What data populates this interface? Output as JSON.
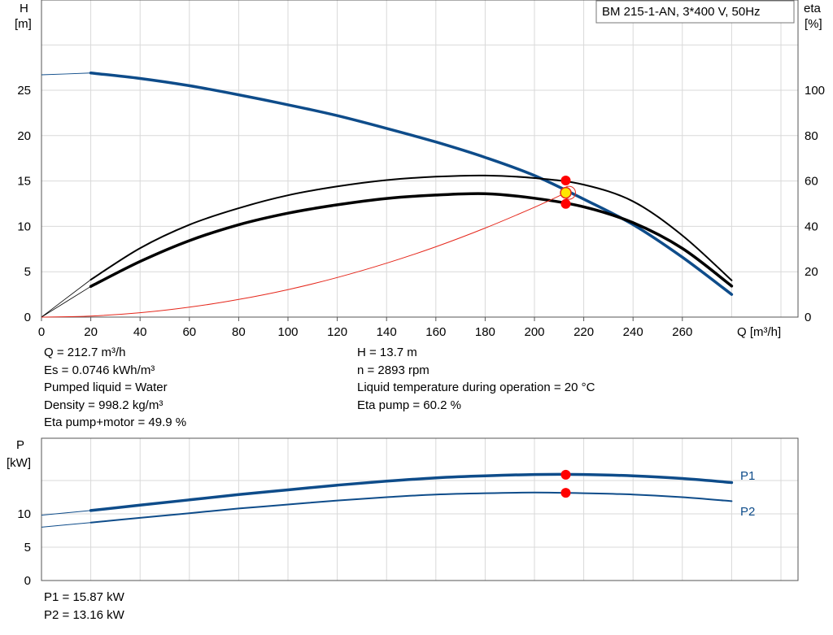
{
  "chart_data": [
    {
      "type": "line",
      "title": "BM 215-1-AN, 3*400 V, 50Hz",
      "ylabel": "H",
      "yunit": "[m]",
      "y2label": "eta",
      "y2unit": "[%]",
      "xlabel": "Q [m³/h]",
      "xlim": [
        0,
        300
      ],
      "ylim": [
        0,
        30
      ],
      "y2lim": [
        0,
        120
      ],
      "xticks": [
        "0",
        "20",
        "40",
        "60",
        "80",
        "100",
        "120",
        "140",
        "160",
        "180",
        "200",
        "220",
        "240",
        "260"
      ],
      "yticks": [
        "0",
        "5",
        "10",
        "15",
        "20",
        "25"
      ],
      "y2ticks": [
        "0",
        "20",
        "40",
        "60",
        "80",
        "100"
      ],
      "grid": true,
      "series": [
        {
          "id": "H-curve",
          "axis": "left",
          "color": "#0e4c8a",
          "x": [
            0,
            20,
            40,
            60,
            80,
            100,
            120,
            140,
            160,
            180,
            200,
            220,
            240,
            260,
            280
          ],
          "y": [
            26.7,
            26.9,
            26.3,
            25.5,
            24.5,
            23.4,
            22.2,
            20.8,
            19.3,
            17.6,
            15.6,
            13.0,
            10.2,
            6.6,
            2.5
          ]
        },
        {
          "id": "eta-pump",
          "axis": "right",
          "color": "#000000",
          "x": [
            0,
            20,
            40,
            60,
            80,
            100,
            120,
            140,
            160,
            180,
            200,
            220,
            240,
            260,
            280
          ],
          "y": [
            0,
            16.5,
            30.4,
            40.7,
            48.0,
            53.7,
            57.6,
            60.4,
            61.9,
            62.4,
            61.3,
            58.4,
            51.0,
            36.0,
            16.2
          ]
        },
        {
          "id": "eta-pump-motor",
          "axis": "right",
          "color": "#000000",
          "x": [
            0,
            20,
            40,
            60,
            80,
            100,
            120,
            140,
            160,
            180,
            200,
            220,
            240,
            260,
            280
          ],
          "y": [
            0,
            13.5,
            24.5,
            33.7,
            40.7,
            45.8,
            49.5,
            52.3,
            53.8,
            54.4,
            52.4,
            48.6,
            41.6,
            30.3,
            13.7
          ]
        },
        {
          "id": "system-curve",
          "axis": "left",
          "color": "#e5271b",
          "x": [
            0,
            20,
            40,
            60,
            80,
            100,
            120,
            140,
            160,
            180,
            200,
            212.7
          ],
          "y": [
            0,
            0.12,
            0.48,
            1.09,
            1.94,
            3.03,
            4.36,
            5.94,
            7.75,
            9.81,
            12.11,
            13.7
          ]
        }
      ],
      "operating_point": {
        "Q": 212.7,
        "H": 13.7,
        "eta_pump": 60.2,
        "eta_pump_motor": 49.9
      }
    },
    {
      "type": "line",
      "ylabel": "P",
      "yunit": "[kW]",
      "xlim": [
        0,
        300
      ],
      "ylim": [
        0,
        17
      ],
      "yticks": [
        "0",
        "5",
        "10"
      ],
      "grid": true,
      "series": [
        {
          "name": "P1",
          "color": "#0e4c8a",
          "x": [
            0,
            20,
            40,
            60,
            80,
            100,
            120,
            140,
            160,
            180,
            200,
            220,
            240,
            260,
            280
          ],
          "y": [
            9.8,
            10.5,
            11.3,
            12.1,
            12.9,
            13.6,
            14.3,
            14.9,
            15.4,
            15.7,
            15.9,
            15.9,
            15.7,
            15.3,
            14.7
          ]
        },
        {
          "name": "P2",
          "color": "#0e4c8a",
          "x": [
            0,
            20,
            40,
            60,
            80,
            100,
            120,
            140,
            160,
            180,
            200,
            220,
            240,
            260,
            280
          ],
          "y": [
            8.0,
            8.7,
            9.4,
            10.1,
            10.8,
            11.4,
            12.0,
            12.5,
            12.9,
            13.1,
            13.2,
            13.1,
            12.9,
            12.5,
            11.9
          ]
        }
      ],
      "operating_point": {
        "Q": 212.7,
        "P1": 15.87,
        "P2": 13.16
      }
    }
  ],
  "info": {
    "col1": [
      "Q = 212.7 m³/h",
      "Es = 0.0746 kWh/m³",
      "Pumped liquid = Water",
      "Density = 998.2 kg/m³",
      "Eta pump+motor = 49.9 %"
    ],
    "col2": [
      "H = 13.7 m",
      "n = 2893 rpm",
      "Liquid temperature during operation = 20 °C",
      "Eta pump = 60.2 %"
    ],
    "power": [
      "P1 = 15.87 kW",
      "P2 = 13.16 kW"
    ]
  }
}
